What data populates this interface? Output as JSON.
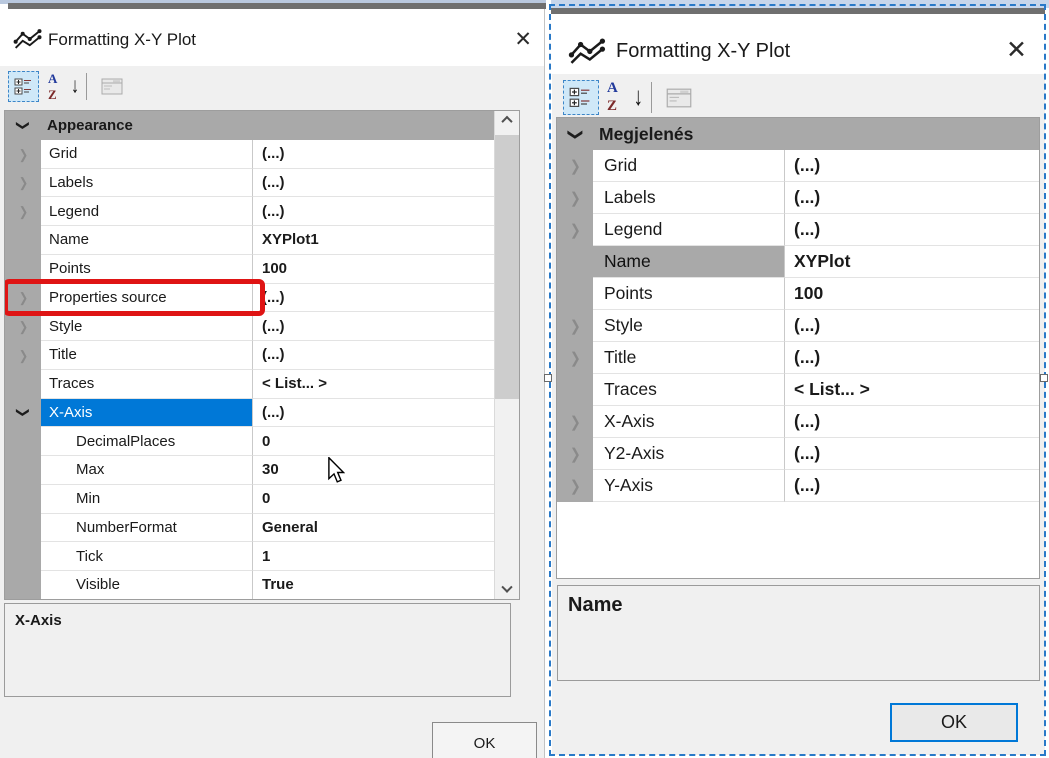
{
  "glyphs": {
    "chevron": "❯",
    "close": "✕",
    "sort_a": "A",
    "sort_z": "Z",
    "sort_arrow": "↓"
  },
  "colors": {
    "selection_blue": "#0078d7",
    "category_gray": "#a9a9a9",
    "red_annotation": "#df1414",
    "marquee_blue": "#2979c8"
  },
  "left_dialog": {
    "title": "Formatting X-Y Plot",
    "title_icon": "line-chart-icon",
    "toolbar_icons": [
      "categorized-view-icon",
      "alphabetical-sort-icon",
      "property-pages-icon"
    ],
    "grid": {
      "rows": [
        {
          "type": "category",
          "label": "Appearance",
          "expander": "expanded"
        },
        {
          "type": "item",
          "label": "Grid",
          "value": "(...)",
          "expander": "collapsed"
        },
        {
          "type": "item",
          "label": "Labels",
          "value": "(...)",
          "expander": "collapsed"
        },
        {
          "type": "item",
          "label": "Legend",
          "value": "(...)",
          "expander": "collapsed"
        },
        {
          "type": "item",
          "label": "Name",
          "value": "XYPlot1"
        },
        {
          "type": "item",
          "label": "Points",
          "value": "100"
        },
        {
          "type": "item",
          "label": "Properties source",
          "value": "(...)",
          "expander": "collapsed",
          "red_highlight": true
        },
        {
          "type": "item",
          "label": "Style",
          "value": "(...)",
          "expander": "collapsed"
        },
        {
          "type": "item",
          "label": "Title",
          "value": "(...)",
          "expander": "collapsed"
        },
        {
          "type": "item",
          "label": "Traces",
          "value": "< List... >"
        },
        {
          "type": "item",
          "label": "X-Axis",
          "value": "(...)",
          "expander": "expanded",
          "selected": "active"
        },
        {
          "type": "item",
          "label": "DecimalPlaces",
          "value": "0",
          "indent": 1
        },
        {
          "type": "item",
          "label": "Max",
          "value": "30",
          "indent": 1
        },
        {
          "type": "item",
          "label": "Min",
          "value": "0",
          "indent": 1
        },
        {
          "type": "item",
          "label": "NumberFormat",
          "value": "General",
          "indent": 1
        },
        {
          "type": "item",
          "label": "Tick",
          "value": "1",
          "indent": 1
        },
        {
          "type": "item",
          "label": "Visible",
          "value": "True",
          "indent": 1
        }
      ]
    },
    "description": "X-Axis",
    "ok_label": "OK"
  },
  "right_dialog": {
    "title": "Formatting X-Y Plot",
    "title_icon": "line-chart-icon",
    "toolbar_icons": [
      "categorized-view-icon",
      "alphabetical-sort-icon",
      "property-pages-icon"
    ],
    "grid": {
      "rows": [
        {
          "type": "category",
          "label": "Megjelenés",
          "expander": "expanded"
        },
        {
          "type": "item",
          "label": "Grid",
          "value": "(...)",
          "expander": "collapsed"
        },
        {
          "type": "item",
          "label": "Labels",
          "value": "(...)",
          "expander": "collapsed"
        },
        {
          "type": "item",
          "label": "Legend",
          "value": "(...)",
          "expander": "collapsed"
        },
        {
          "type": "item",
          "label": "Name",
          "value": "XYPlot",
          "selected": "inactive"
        },
        {
          "type": "item",
          "label": "Points",
          "value": "100"
        },
        {
          "type": "item",
          "label": "Style",
          "value": "(...)",
          "expander": "collapsed"
        },
        {
          "type": "item",
          "label": "Title",
          "value": "(...)",
          "expander": "collapsed"
        },
        {
          "type": "item",
          "label": "Traces",
          "value": "< List... >"
        },
        {
          "type": "item",
          "label": "X-Axis",
          "value": "(...)",
          "expander": "collapsed"
        },
        {
          "type": "item",
          "label": "Y2-Axis",
          "value": "(...)",
          "expander": "collapsed"
        },
        {
          "type": "item",
          "label": "Y-Axis",
          "value": "(...)",
          "expander": "collapsed"
        }
      ]
    },
    "description": "Name",
    "ok_label": "OK"
  }
}
